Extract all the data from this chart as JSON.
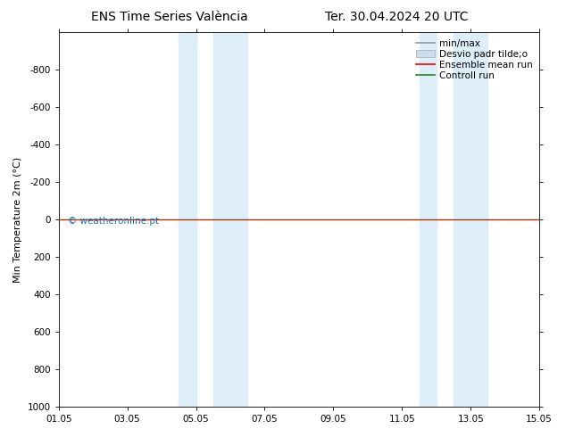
{
  "title_left": "ENS Time Series València",
  "title_right": "Ter. 30.04.2024 20 UTC",
  "ylabel": "Min Temperature 2m (°C)",
  "xlabel": "",
  "xtick_labels": [
    "01.05",
    "03.05",
    "05.05",
    "07.05",
    "09.05",
    "11.05",
    "13.05",
    "15.05"
  ],
  "xtick_positions": [
    0,
    2,
    4,
    6,
    8,
    10,
    12,
    14
  ],
  "ylim_bottom": -1000,
  "ylim_top": 1000,
  "yticks": [
    -800,
    -600,
    -400,
    -200,
    0,
    200,
    400,
    600,
    800,
    1000
  ],
  "shaded_regions": [
    [
      3.5,
      4.0
    ],
    [
      4.5,
      5.5
    ],
    [
      10.5,
      11.0
    ],
    [
      11.5,
      12.5
    ]
  ],
  "shaded_color": "#ddeef8",
  "control_run_y": 0.0,
  "ensemble_mean_y": 0.0,
  "watermark_text": "© weatheronline.pt",
  "watermark_color": "#1a6fad",
  "line_color_control": "#228B22",
  "line_color_ensemble_mean": "#ff0000",
  "background_color": "#ffffff",
  "plot_bg_color": "#ffffff",
  "title_fontsize": 10,
  "axis_label_fontsize": 8,
  "tick_fontsize": 7.5,
  "legend_fontsize": 7.5
}
